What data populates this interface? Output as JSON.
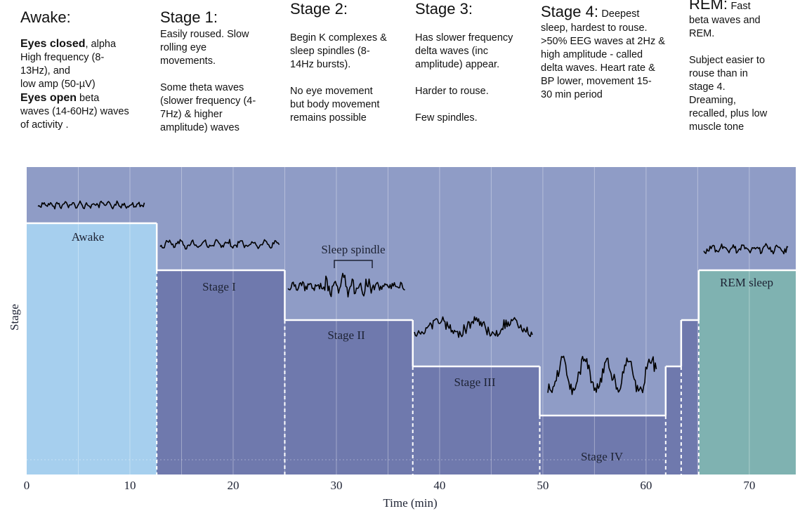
{
  "stages": {
    "awake": {
      "heading": "Awake:",
      "eyes_closed_label": "Eyes closed",
      "eyes_closed_text": ", alpha\nHigh frequency (8-\n13Hz),  and\nlow amp (50-µV)",
      "eyes_open_label": "Eyes open",
      "eyes_open_text": "  beta\nwaves  (14-60Hz) waves\nof activity ."
    },
    "stage1": {
      "heading": "Stage 1:",
      "text": "Easily roused.  Slow\nrolling eye\nmovements.\n\nSome  theta waves\n(slower frequency (4-\n7Hz) & higher\namplitude) waves"
    },
    "stage2": {
      "heading": "Stage 2:",
      "text": "Begin K complexes &\nsleep spindles (8-\n14Hz bursts).\n\nNo eye movement\nbut body movement\nremains possible"
    },
    "stage3": {
      "heading": "Stage 3:",
      "text": "Has slower  frequency\n  delta waves (inc\namplitude) appear.\n\nHarder to rouse.\n\nFew spindles."
    },
    "stage4": {
      "heading": "Stage 4:",
      "lead": "Deepest",
      "text": "sleep, hardest to rouse.\n>50% EEG waves at 2Hz &\nhigh amplitude - called\ndelta waves. Heart rate &\nBP lower, movement 15-\n30 min period"
    },
    "rem": {
      "heading": "REM:",
      "lead": "Fast",
      "text": "beta waves and\nREM.\n\nSubject easier to\nrouse than in\nstage 4.\nDreaming,\nrecalled,  plus low\nmuscle tone"
    }
  },
  "chart_data": {
    "type": "area",
    "xlabel": "Time (min)",
    "ylabel": "Stage",
    "xlim": [
      0,
      74.5
    ],
    "x_ticks": [
      0,
      10,
      20,
      30,
      40,
      50,
      60,
      70
    ],
    "stage_levels": {
      "Awake": 5,
      "REM": 4,
      "Stage I": 4,
      "Stage II": 3,
      "Stage III": 2,
      "Stage IV": 1
    },
    "segments": [
      {
        "label": "Awake",
        "start": 0,
        "end": 12.6,
        "level": 5
      },
      {
        "label": "Stage I",
        "start": 12.6,
        "end": 25,
        "level": 4
      },
      {
        "label": "Stage II",
        "start": 25,
        "end": 37.4,
        "level": 3
      },
      {
        "label": "Stage III",
        "start": 37.4,
        "end": 49.7,
        "level": 2
      },
      {
        "label": "Stage IV",
        "start": 49.7,
        "end": 61.9,
        "level": 1
      },
      {
        "label": "",
        "start": 61.9,
        "end": 63.4,
        "level": 2
      },
      {
        "label": "",
        "start": 63.4,
        "end": 65.1,
        "level": 3
      },
      {
        "label": "REM sleep",
        "start": 65.1,
        "end": 74.5,
        "level": 4
      }
    ],
    "annotation": "Sleep spindle",
    "colors": {
      "background": "#8f9cc6",
      "awake": "#a6cfee",
      "sleep": "#6f79ad",
      "rem": "#7fb2b1",
      "waveform": "#000000",
      "divider": "#ffffff"
    }
  }
}
